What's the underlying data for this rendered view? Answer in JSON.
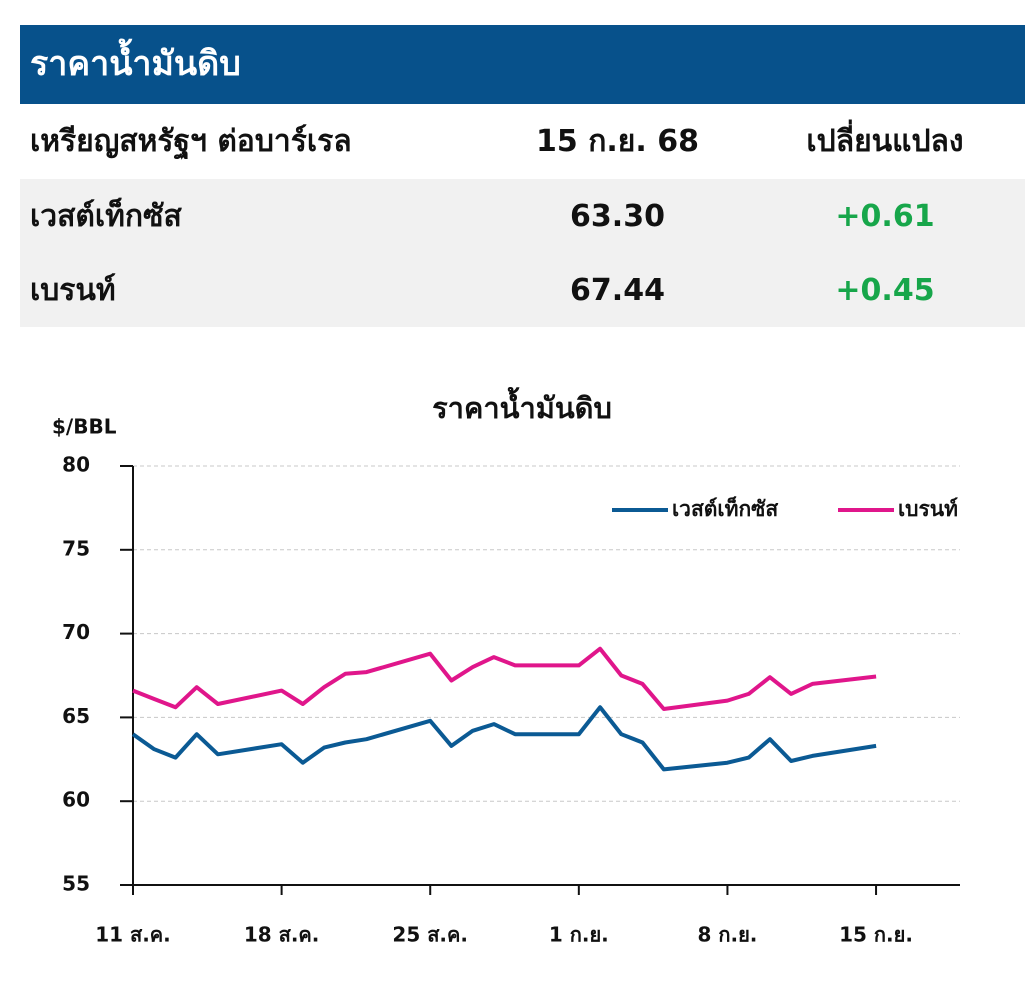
{
  "table": {
    "title": "ราคาน้ำมันดิบ",
    "header": [
      "เหรียญสหรัฐฯ ต่อบาร์เรล",
      "15 ก.ย. 68",
      "เปลี่ยนแปลง"
    ],
    "rows": [
      [
        "เวสต์เท็กซัส",
        "63.30",
        "+0.61"
      ],
      [
        "เบรนท์",
        "67.44",
        "+0.45"
      ]
    ]
  },
  "chart_data": {
    "type": "line",
    "title": "ราคาน้ำมันดิบ",
    "y_label": "$/BBL",
    "x": [
      "11 ส.ค.",
      "12 ส.ค.",
      "13 ส.ค.",
      "14 ส.ค.",
      "15 ส.ค.",
      "18 ส.ค.",
      "19 ส.ค.",
      "20 ส.ค.",
      "21 ส.ค.",
      "22 ส.ค.",
      "25 ส.ค.",
      "26 ส.ค.",
      "27 ส.ค.",
      "28 ส.ค.",
      "29 ส.ค.",
      "1 ก.ย.",
      "2 ก.ย.",
      "3 ก.ย.",
      "4 ก.ย.",
      "5 ก.ย.",
      "8 ก.ย.",
      "9 ก.ย.",
      "10 ก.ย.",
      "11 ก.ย.",
      "12 ก.ย.",
      "15 ก.ย."
    ],
    "series": [
      {
        "name": "เวสต์เท็กซัส",
        "color": "#0b5a94",
        "values": [
          64.0,
          63.1,
          62.6,
          64.0,
          62.8,
          63.4,
          62.3,
          63.2,
          63.5,
          63.7,
          64.8,
          63.3,
          64.2,
          64.6,
          64.0,
          64.0,
          65.6,
          64.0,
          63.5,
          61.9,
          62.3,
          62.6,
          63.7,
          62.4,
          62.7,
          63.3
        ]
      },
      {
        "name": "เบรนท์",
        "color": "#e0168b",
        "values": [
          66.6,
          66.1,
          65.6,
          66.8,
          65.8,
          66.6,
          65.8,
          66.8,
          67.6,
          67.7,
          68.8,
          67.2,
          68.0,
          68.6,
          68.1,
          68.1,
          69.1,
          67.5,
          67.0,
          65.5,
          66.0,
          66.4,
          67.4,
          66.4,
          67.0,
          67.44
        ]
      }
    ],
    "xticks": [
      "11 ส.ค.",
      "18 ส.ค.",
      "25 ส.ค.",
      "1 ก.ย.",
      "8 ก.ย.",
      "15 ก.ย."
    ],
    "ylim": [
      55,
      80
    ],
    "yticks": [
      55,
      60,
      65,
      70,
      75,
      80
    ],
    "grid": true,
    "legend": "top-right"
  }
}
